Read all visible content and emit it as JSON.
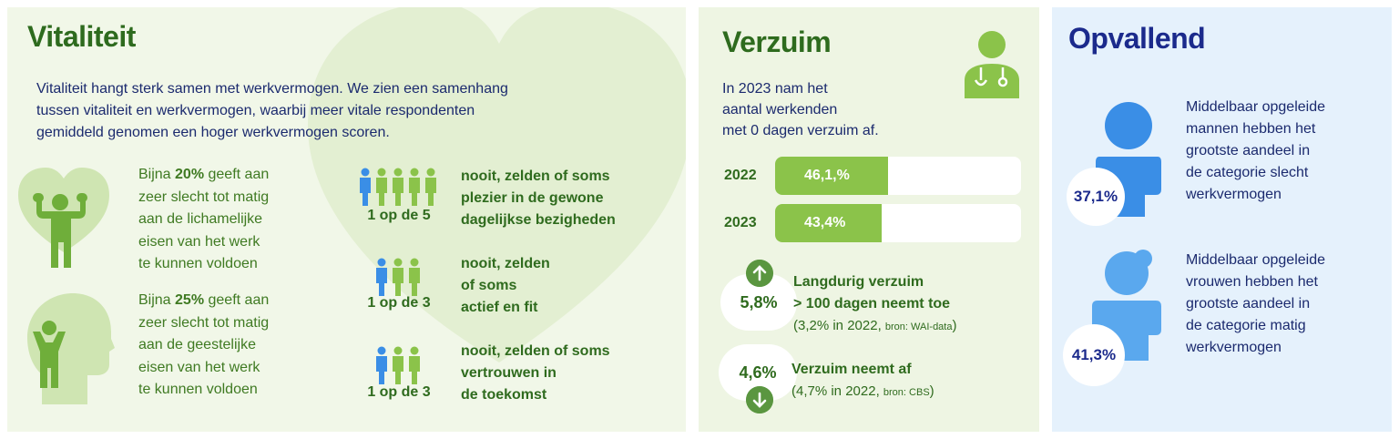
{
  "vitaliteit": {
    "title": "Vitaliteit",
    "intro": [
      "Vitaliteit hangt sterk samen met werkvermogen. We zien een samenhang",
      "tussen vitaliteit en werkvermogen, waarbij meer vitale respondenten",
      "gemiddeld genomen een hoger werkvermogen scoren."
    ],
    "stat1": {
      "pre": "Bijna ",
      "pct": "20%",
      "post": " geeft aan",
      "lines": [
        "zeer slecht tot matig",
        "aan de lichamelijke",
        "eisen van het werk",
        "te kunnen voldoen"
      ]
    },
    "stat2": {
      "pre": "Bijna ",
      "pct": "25%",
      "post": " geeft aan",
      "lines": [
        "zeer slecht tot matig",
        "aan de geestelijke",
        "eisen van het werk",
        "te kunnen voldoen"
      ]
    },
    "group1": {
      "ratio": "1 op de 5",
      "lines": [
        "nooit, zelden of  soms",
        "plezier in de gewone",
        "dagelijkse bezigheden"
      ]
    },
    "group2": {
      "ratio": "1 op de 3",
      "lines": [
        "nooit, zelden",
        "of soms",
        "actief en fit"
      ]
    },
    "group3": {
      "ratio": "1 op de 3",
      "lines": [
        "nooit, zelden of soms",
        "vertrouwen in",
        "de toekomst"
      ]
    },
    "icons": {
      "body": "person-flexing-icon",
      "head": "head-profile-icon",
      "people": "people-group-icon"
    }
  },
  "verzuim": {
    "title": "Verzuim",
    "intro": [
      "In 2023 nam het",
      "aantal werkenden",
      "met 0 dagen verzuim af."
    ],
    "bars": [
      {
        "year": "2022",
        "label": "46,1,%",
        "value": 46.1
      },
      {
        "year": "2023",
        "label": "43,4%",
        "value": 43.4
      }
    ],
    "item1": {
      "value": "5,8%",
      "line1": "Langdurig verzuim",
      "line2": "> 100 dagen neemt toe",
      "note_main": "(3,2% in 2022, ",
      "note_src": "bron: WAI-data",
      "note_end": ")",
      "icon": "arrow-up-icon"
    },
    "item2": {
      "value": "4,6%",
      "line1": "Verzuim neemt af",
      "note_main": "(4,7% in 2022, ",
      "note_src": "bron: CBS",
      "note_end": ")",
      "icon": "arrow-down-icon"
    },
    "doctor_icon": "doctor-icon"
  },
  "opvallend": {
    "title": "Opvallend",
    "men": {
      "value": "37,1%",
      "lines": [
        "Middelbaar opgeleide",
        "mannen hebben het",
        "grootste aandeel in",
        "de categorie slecht",
        "werkvermogen"
      ]
    },
    "women": {
      "value": "41,3%",
      "lines": [
        "Middelbaar opgeleide",
        "vrouwen hebben het",
        "grootste aandeel in",
        "de categorie matig",
        "werkvermogen"
      ]
    }
  },
  "colors": {
    "green_dark": "#2e6b1e",
    "green_light": "#8bc34a",
    "blue_dark": "#1b2a8c",
    "blue_light": "#3a8ee6",
    "bg_green": "#f1f7e8",
    "bg_blue": "#e5f1fc"
  }
}
